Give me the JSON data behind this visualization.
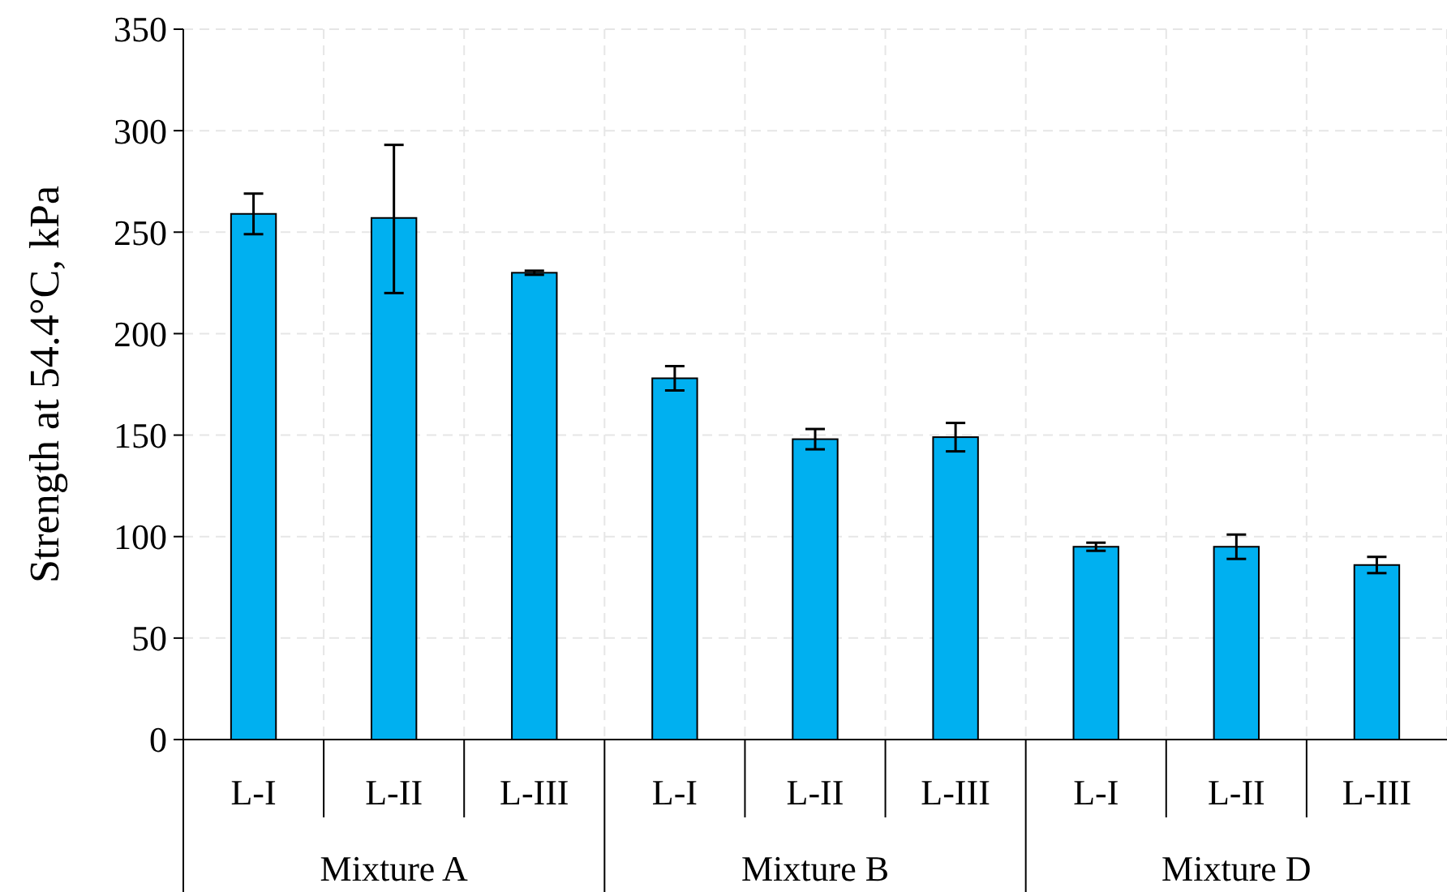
{
  "chart_data": {
    "type": "bar",
    "ylabel": "Strength at 54.4°C, kPa",
    "categories": [
      "L-I",
      "L-II",
      "L-III",
      "L-I",
      "L-II",
      "L-III",
      "L-I",
      "L-II",
      "L-III"
    ],
    "values": [
      259,
      257,
      230,
      178,
      148,
      149,
      95,
      95,
      86
    ],
    "errors": [
      10,
      [
        220,
        293
      ],
      1,
      6,
      5,
      7,
      2,
      6,
      4
    ],
    "color": "#00b0f0",
    "ylim": [
      0,
      350
    ],
    "yticks": [
      0,
      50,
      100,
      150,
      200,
      250,
      300,
      350
    ],
    "grid": true,
    "annotations": [
      "Mixture A",
      "Mixture B",
      "Mixture D"
    ]
  }
}
